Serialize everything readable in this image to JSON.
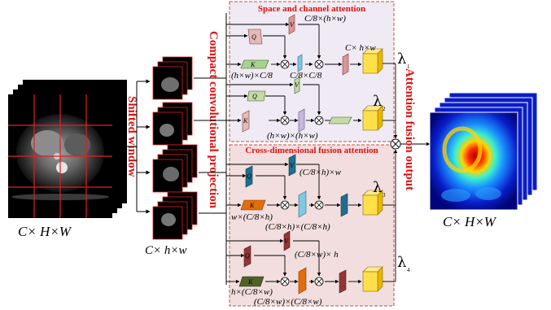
{
  "input_label": "C× H×W",
  "window_label": "C× h×w",
  "output_label": "C× H×W",
  "shifted_window_title": "Shifted window",
  "compact_projection_title": "Compact convolutional projection",
  "attention_fusion_title": "Attention fusion output",
  "panel_top": {
    "title": "Space and channel attention",
    "dim_top": "C/8×(h×w)",
    "dim_k": "(h×w)×C/8",
    "dim_cc": "C/8×C/8",
    "dim_out": "C× h×w",
    "dim_bottom": "(h×w)×(h×w)"
  },
  "panel_bottom": {
    "title": "Cross-dimensional fusion attention",
    "dim_1": "(C/8×h)×w",
    "dim_2": "w×(C/8×h)",
    "dim_3": "(C/8×h)×(C/8×h)",
    "dim_4": "(C/8×w)× h",
    "dim_5": "h×(C/8×w)",
    "dim_6": "(C/8×w)×(C/8×w)"
  },
  "lambdas": {
    "l1": "λ",
    "s1": "1",
    "l2": "λ",
    "s2": "2",
    "l3": "λ",
    "s3": "3",
    "l4": "λ",
    "s4": "4"
  },
  "letters": {
    "q": "Q",
    "k": "K",
    "v": "V"
  },
  "colors": {
    "title_red": "#e01010",
    "panel_top_fill": "#efeaf3",
    "panel_bottom_fill": "#f2dede",
    "panel_border": "#c0504d",
    "cube_yellow": "#ffe04a"
  }
}
